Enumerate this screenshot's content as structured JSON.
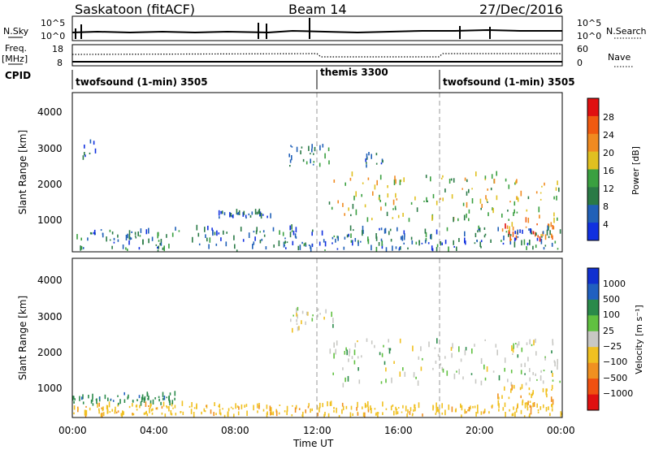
{
  "header": {
    "station": "Saskatoon (fitACF)",
    "beam": "Beam 14",
    "date": "27/Dec/2016"
  },
  "top_panels": {
    "nsky_label": "N.Sky",
    "nsky_ticks": [
      "10^5",
      "10^0"
    ],
    "nsearch_label": "N.Search",
    "freq_label": "Freq.",
    "freq_unit": "[MHz]",
    "freq_ticks": [
      "18",
      "8"
    ],
    "nave_ticks": [
      "60",
      "0"
    ],
    "nave_label": "Nave",
    "cpid_label": "CPID",
    "cpid_segments": [
      {
        "label": "twofsound (1-min) 3505",
        "start_h": 0,
        "end_h": 12
      },
      {
        "label": "themis 3300",
        "start_h": 12,
        "end_h": 18
      },
      {
        "label": "twofsound (1-min) 3505",
        "start_h": 18,
        "end_h": 24
      }
    ]
  },
  "chart_data": [
    {
      "type": "heatmap",
      "name": "power",
      "ylabel": "Slant Range [km]",
      "xlabel": "",
      "y_ticks": [
        "1000",
        "2000",
        "3000",
        "4000"
      ],
      "ylim": [
        180,
        4600
      ],
      "x_ticks": [],
      "colorbar": {
        "label": "Power [dB]",
        "ticks": [
          "4",
          "8",
          "12",
          "16",
          "20",
          "24",
          "28"
        ],
        "colors": [
          "#1030e0",
          "#2060b8",
          "#2a7a46",
          "#3aa040",
          "#e0c020",
          "#f08a20",
          "#f05a10",
          "#e01010"
        ]
      },
      "echo_regions": [
        {
          "x0": 12.5,
          "x1": 24.0,
          "y0": 1000,
          "y1": 2300,
          "power": 16
        },
        {
          "x0": 20.8,
          "x1": 23.6,
          "y0": 450,
          "y1": 1000,
          "power": 24
        },
        {
          "x0": 10.6,
          "x1": 12.8,
          "y0": 2500,
          "y1": 3150,
          "power": 10
        },
        {
          "x0": 14.2,
          "x1": 15.2,
          "y0": 2500,
          "y1": 2900,
          "power": 8
        },
        {
          "x0": 0.0,
          "x1": 24.0,
          "y0": 180,
          "y1": 800,
          "power": 8
        },
        {
          "x0": 7.0,
          "x1": 9.8,
          "y0": 1100,
          "y1": 1250,
          "power": 6
        },
        {
          "x0": 0.5,
          "x1": 1.2,
          "y0": 2700,
          "y1": 3200,
          "power": 6
        }
      ]
    },
    {
      "type": "heatmap",
      "name": "velocity",
      "ylabel": "Slant Range [km]",
      "xlabel": "Time UT",
      "y_ticks": [
        "1000",
        "2000",
        "3000",
        "4000"
      ],
      "ylim": [
        180,
        4600
      ],
      "x_ticks": [
        "00:00",
        "04:00",
        "08:00",
        "12:00",
        "16:00",
        "20:00",
        "00:00"
      ],
      "xlim": [
        0,
        24
      ],
      "colorbar": {
        "label": "Velocity [m s⁻¹]",
        "ticks": [
          "1000",
          "500",
          "100",
          "25",
          "−25",
          "−100",
          "−500",
          "−1000"
        ],
        "colors": [
          "#1030d0",
          "#2060c0",
          "#2a8a4a",
          "#60c040",
          "#c8c8c4",
          "#f0c020",
          "#f09020",
          "#f05010",
          "#e01010"
        ]
      },
      "echo_regions": [
        {
          "x0": 12.5,
          "x1": 24.0,
          "y0": 1000,
          "y1": 2300,
          "velocity": 0
        },
        {
          "x0": 20.8,
          "x1": 23.6,
          "y0": 450,
          "y1": 1000,
          "velocity": -80
        },
        {
          "x0": 10.6,
          "x1": 12.8,
          "y0": 2500,
          "y1": 3150,
          "velocity": 0
        },
        {
          "x0": 0.0,
          "x1": 24.0,
          "y0": 180,
          "y1": 500,
          "velocity": -80
        },
        {
          "x0": 0.0,
          "x1": 5.0,
          "y0": 500,
          "y1": 800,
          "velocity": 80
        }
      ]
    }
  ]
}
